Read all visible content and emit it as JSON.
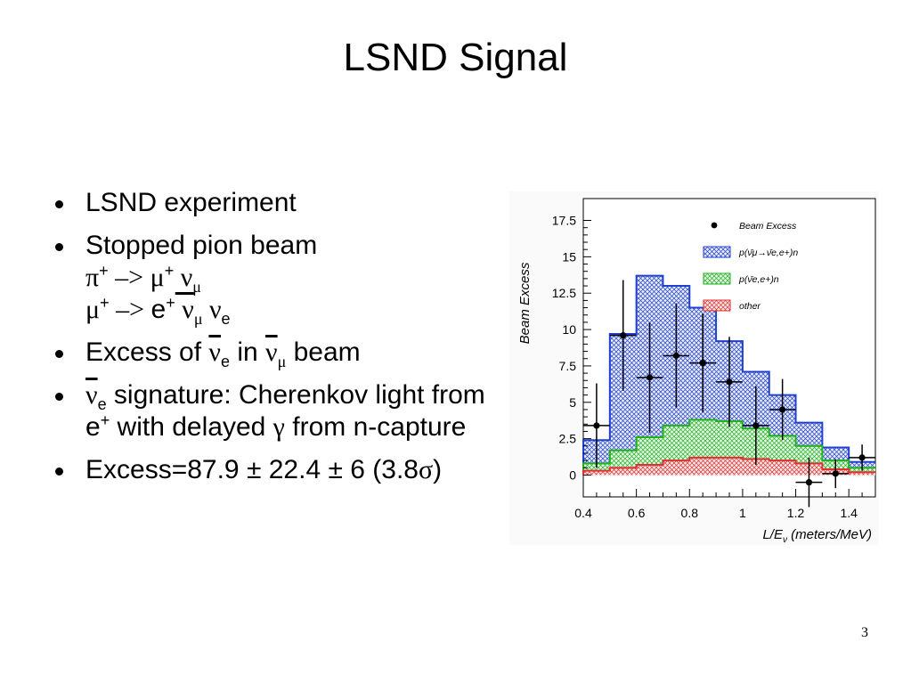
{
  "slide": {
    "title": "LSND Signal",
    "page_number": "3",
    "bullets": [
      {
        "text": "LSND experiment"
      },
      {
        "text": "Stopped pion beam",
        "line2": [
          "π",
          "+",
          " –> ",
          "μ",
          "+",
          " ν",
          "μ"
        ],
        "line3": [
          "μ",
          "+",
          " –> ",
          "e",
          "+",
          " ν",
          "μ",
          " ν",
          "e"
        ]
      },
      {
        "parts": [
          "Excess of ",
          "ν",
          "e",
          " in ",
          "ν",
          "μ",
          " beam"
        ]
      },
      {
        "parts": [
          "ν",
          "e",
          " signature: Cherenkov light from e",
          "+",
          " with delayed ",
          "γ",
          " from n-capture"
        ]
      },
      {
        "parts": [
          "Excess=87.9 ± 22.4 ± 6 (3.8",
          "σ",
          ")"
        ]
      }
    ]
  },
  "chart_data": {
    "type": "bar",
    "ylabel": "Beam Excess",
    "xlabel_main": "L/E",
    "xlabel_sub": "ν",
    "xlabel_unit": " (meters/MeV)",
    "xlim": [
      0.4,
      1.5
    ],
    "ylim": [
      -1.5,
      19
    ],
    "xticks": [
      0.4,
      0.6,
      0.8,
      1.0,
      1.2,
      1.4
    ],
    "xtick_labels": [
      "0.4",
      "0.6",
      "0.8",
      "1",
      "1.2",
      "1.4"
    ],
    "yticks": [
      0,
      2.5,
      5,
      7.5,
      10,
      12.5,
      15,
      17.5
    ],
    "ytick_labels": [
      "0",
      "2.5",
      "5",
      "7.5",
      "10",
      "12.5",
      "15",
      "17.5"
    ],
    "bin_edges": [
      0.4,
      0.5,
      0.6,
      0.7,
      0.8,
      0.9,
      1.0,
      1.1,
      1.2,
      1.3,
      1.4,
      1.5
    ],
    "stack_other": [
      0.3,
      0.5,
      0.7,
      1.0,
      1.2,
      1.2,
      1.1,
      1.0,
      0.8,
      0.4,
      0.2
    ],
    "stack_green": [
      0.5,
      1.2,
      1.9,
      2.4,
      2.6,
      2.5,
      2.1,
      1.7,
      1.2,
      0.6,
      0.3
    ],
    "stack_blue": [
      1.6,
      8.0,
      11.1,
      9.6,
      7.7,
      5.5,
      3.9,
      2.8,
      1.6,
      0.9,
      0.4
    ],
    "series_colors": {
      "other": "#e03030",
      "green": "#20b020",
      "blue": "#2040d0"
    },
    "data_points": [
      {
        "x": 0.45,
        "y": 3.4,
        "err": 2.9
      },
      {
        "x": 0.55,
        "y": 9.6,
        "err": 3.8
      },
      {
        "x": 0.65,
        "y": 6.7,
        "err": 3.8
      },
      {
        "x": 0.75,
        "y": 8.2,
        "err": 3.6
      },
      {
        "x": 0.85,
        "y": 7.7,
        "err": 3.4
      },
      {
        "x": 0.95,
        "y": 6.4,
        "err": 3.1
      },
      {
        "x": 1.05,
        "y": 3.4,
        "err": 2.7
      },
      {
        "x": 1.15,
        "y": 4.5,
        "err": 2.1
      },
      {
        "x": 1.25,
        "y": -0.5,
        "err": 1.7
      },
      {
        "x": 1.35,
        "y": 0.1,
        "err": 1.0
      },
      {
        "x": 1.45,
        "y": 1.2,
        "err": 0.9
      }
    ],
    "legend_position": "top-right",
    "legend": [
      {
        "key": "points",
        "label": "Beam Excess"
      },
      {
        "key": "blue",
        "label": "p(ν̄μ→ν̄e,e+)n"
      },
      {
        "key": "green",
        "label": "p(ν̄e,e+)n"
      },
      {
        "key": "other",
        "label": "other"
      }
    ]
  }
}
